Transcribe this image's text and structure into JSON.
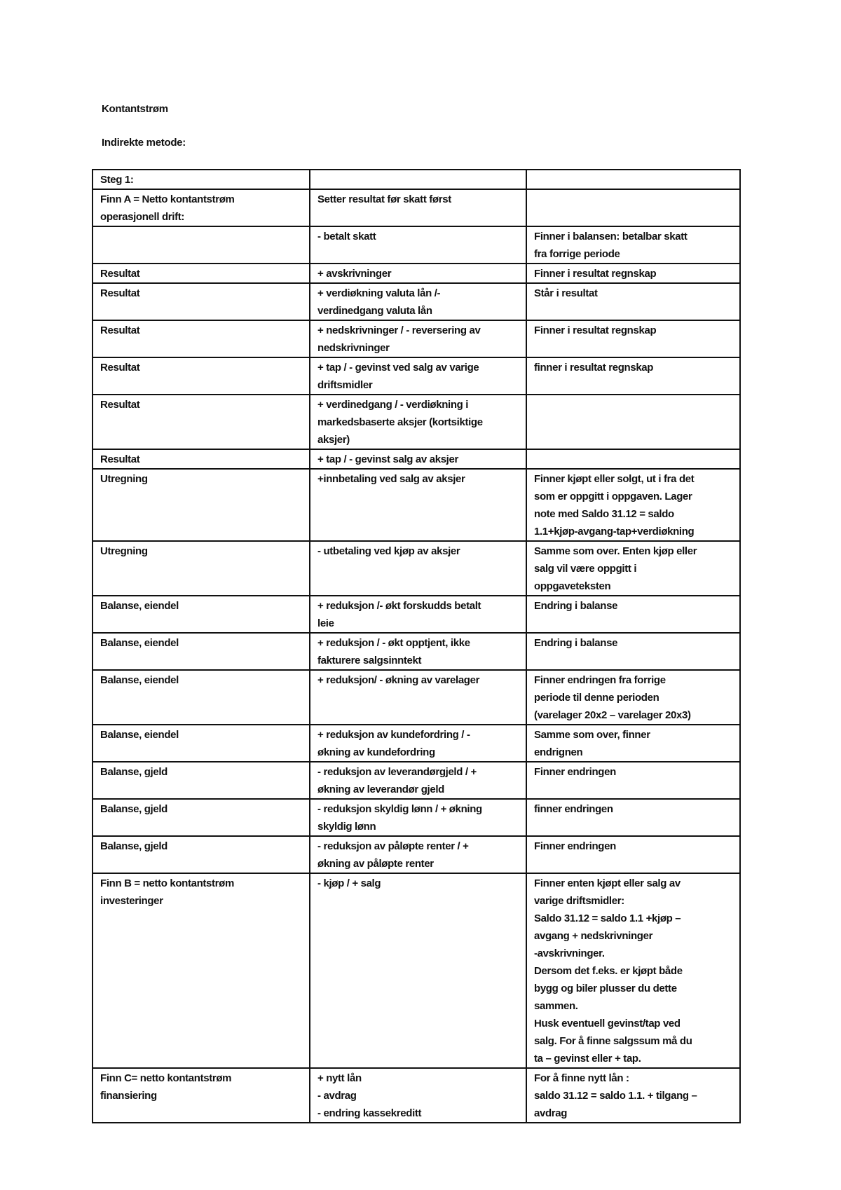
{
  "title": "Kontantstrøm",
  "subtitle": "Indirekte metode:",
  "table": {
    "rows": [
      {
        "c": [
          [
            "Steg 1:"
          ],
          [],
          []
        ]
      },
      {
        "c": [
          [
            "Finn A = Netto kontantstrøm",
            "operasjonell drift:"
          ],
          [
            "Setter resultat før skatt først"
          ],
          []
        ]
      },
      {
        "c": [
          [],
          [
            "- betalt skatt"
          ],
          [
            "Finner i balansen: betalbar skatt",
            "fra forrige periode"
          ]
        ]
      },
      {
        "c": [
          [
            "Resultat"
          ],
          [
            "+ avskrivninger"
          ],
          [
            "Finner i resultat regnskap"
          ]
        ]
      },
      {
        "c": [
          [
            "Resultat"
          ],
          [
            "+ verdiøkning valuta lån /-",
            "verdinedgang valuta lån"
          ],
          [
            "Står i resultat"
          ]
        ]
      },
      {
        "c": [
          [
            "Resultat"
          ],
          [
            "+ nedskrivninger / - reversering av",
            "nedskrivninger"
          ],
          [
            "Finner i resultat regnskap"
          ]
        ]
      },
      {
        "c": [
          [
            "Resultat"
          ],
          [
            "+ tap / - gevinst ved salg av varige",
            "driftsmidler"
          ],
          [
            "finner i resultat regnskap"
          ]
        ]
      },
      {
        "c": [
          [
            "Resultat"
          ],
          [
            "+ verdinedgang / - verdiøkning i",
            "markedsbaserte aksjer (kortsiktige",
            "aksjer)"
          ],
          []
        ]
      },
      {
        "c": [
          [
            "Resultat"
          ],
          [
            "+ tap / - gevinst salg av aksjer"
          ],
          []
        ]
      },
      {
        "c": [
          [
            "Utregning"
          ],
          [
            "+innbetaling ved salg av aksjer"
          ],
          [
            "Finner kjøpt eller solgt, ut i fra det",
            "som er oppgitt i oppgaven. Lager",
            "note med Saldo 31.12 = saldo",
            "1.1+kjøp-avgang-tap+verdiøkning"
          ]
        ]
      },
      {
        "c": [
          [
            "Utregning"
          ],
          [
            "- utbetaling ved kjøp av aksjer"
          ],
          [
            "Samme som over. Enten kjøp eller",
            "salg vil være oppgitt i",
            "oppgaveteksten"
          ]
        ]
      },
      {
        "c": [
          [
            "Balanse, eiendel"
          ],
          [
            "+ reduksjon /- økt forskudds betalt",
            "leie"
          ],
          [
            "Endring i balanse"
          ]
        ]
      },
      {
        "c": [
          [
            "Balanse, eiendel"
          ],
          [
            "+ reduksjon / - økt opptjent, ikke",
            "fakturere salgsinntekt"
          ],
          [
            "Endring i balanse"
          ]
        ]
      },
      {
        "c": [
          [
            "Balanse, eiendel"
          ],
          [
            "+ reduksjon/ - økning av varelager"
          ],
          [
            "Finner endringen fra forrige",
            "periode til denne perioden",
            "(varelager 20x2 – varelager 20x3)"
          ]
        ]
      },
      {
        "c": [
          [
            "Balanse, eiendel"
          ],
          [
            "+ reduksjon av kundefordring / -",
            "økning av kundefordring"
          ],
          [
            "Samme som over, finner",
            "endrignen"
          ]
        ]
      },
      {
        "c": [
          [
            "Balanse, gjeld"
          ],
          [
            "- reduksjon av leverandørgjeld / +",
            "økning av leverandør gjeld"
          ],
          [
            "Finner endringen"
          ]
        ]
      },
      {
        "c": [
          [
            "Balanse, gjeld"
          ],
          [
            "- reduksjon skyldig lønn / + økning",
            "skyldig lønn"
          ],
          [
            "finner endringen"
          ]
        ]
      },
      {
        "c": [
          [
            "Balanse, gjeld"
          ],
          [
            "- reduksjon av påløpte renter / +",
            "økning av påløpte renter"
          ],
          [
            "Finner endringen"
          ]
        ]
      },
      {
        "c": [
          [
            "Finn B = netto kontantstrøm",
            "investeringer"
          ],
          [
            "- kjøp / + salg"
          ],
          [
            "Finner enten kjøpt eller salg av",
            "varige driftsmidler:",
            "Saldo 31.12 = saldo 1.1 +kjøp –",
            "avgang + nedskrivninger",
            "-avskrivninger.",
            "Dersom det f.eks. er kjøpt både",
            "bygg og biler plusser du dette",
            "sammen.",
            "Husk eventuell gevinst/tap ved",
            "salg. For å finne salgssum må du",
            "ta – gevinst eller + tap."
          ]
        ]
      },
      {
        "c": [
          [
            "Finn C= netto kontantstrøm",
            "finansiering"
          ],
          [
            "+ nytt lån",
            "- avdrag",
            "- endring kassekreditt"
          ],
          [
            "For å finne nytt lån :",
            "saldo 31.12 = saldo 1.1. + tilgang –",
            "avdrag"
          ]
        ]
      }
    ]
  }
}
